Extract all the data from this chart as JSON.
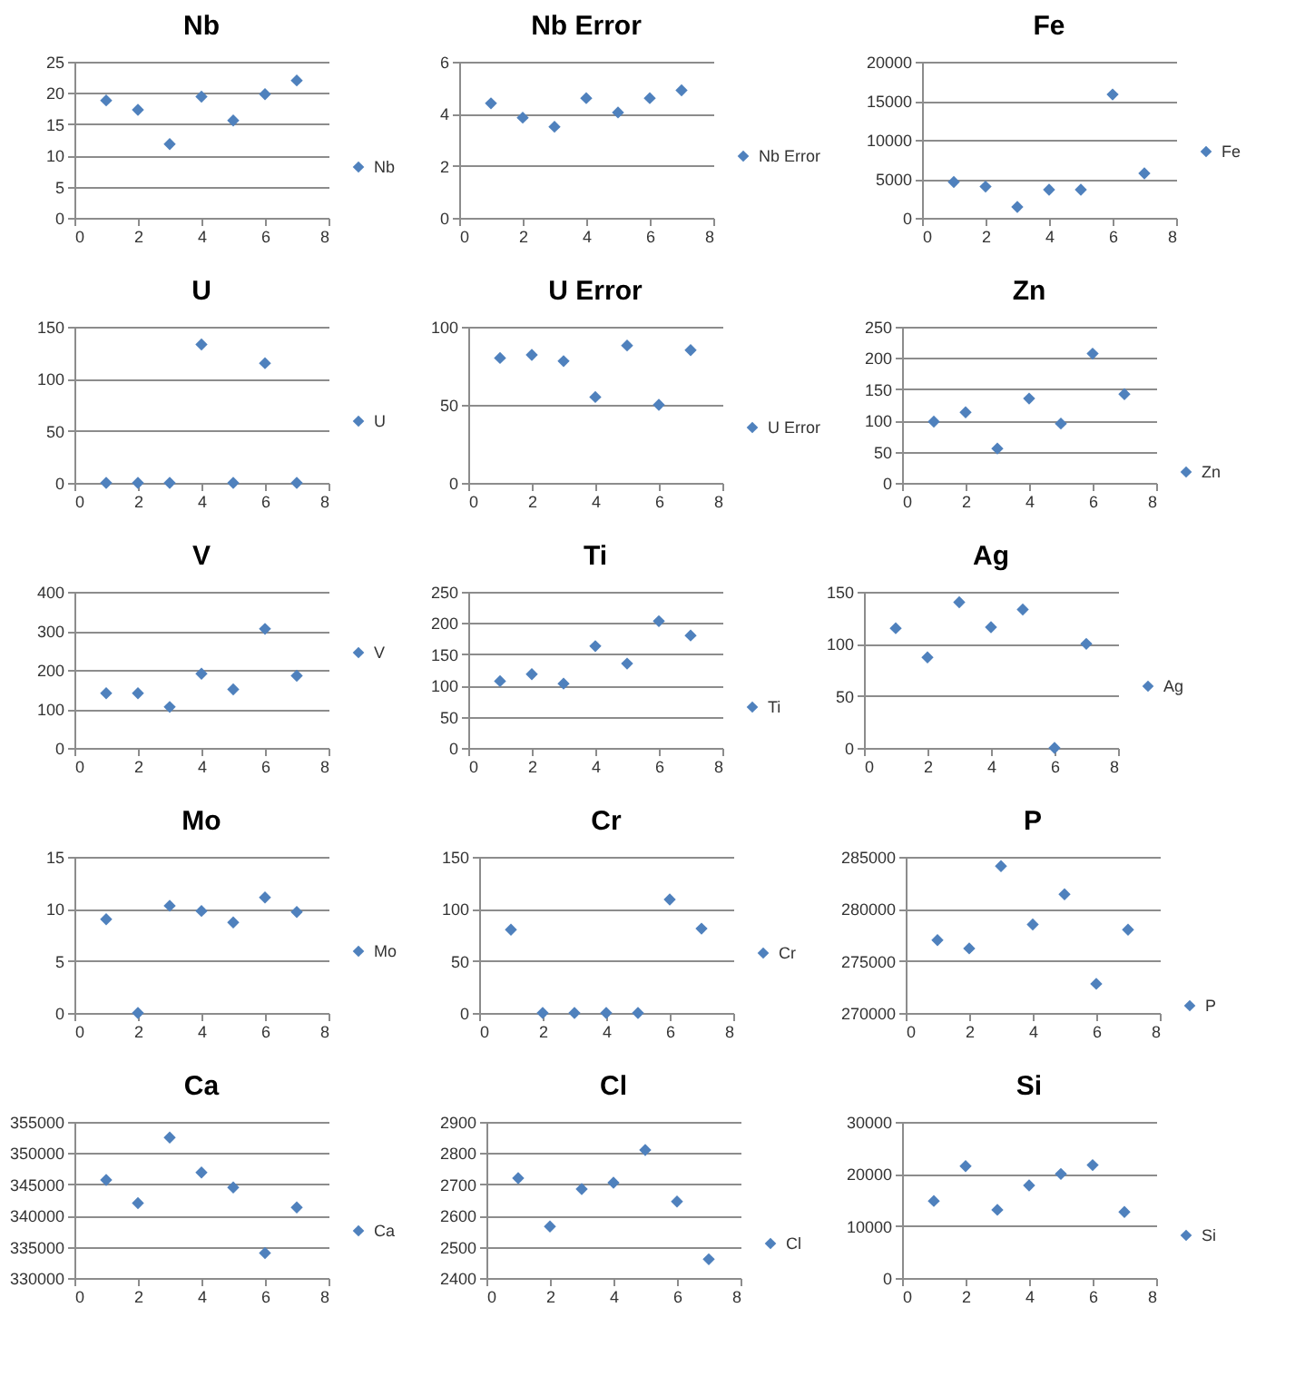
{
  "chart_data": [
    {
      "type": "scatter",
      "title": "Nb",
      "x": [
        1,
        2,
        3,
        4,
        5,
        6,
        7
      ],
      "series": [
        {
          "name": "Nb",
          "color": "#4f81bd",
          "values": [
            18.8,
            17.3,
            11.8,
            19.4,
            15.6,
            19.8,
            22.0
          ]
        }
      ],
      "xlim": [
        0,
        8
      ],
      "xticks": [
        0,
        2,
        4,
        6,
        8
      ],
      "ylim": [
        0,
        25
      ],
      "yticks": [
        0,
        5,
        10,
        15,
        20,
        25
      ],
      "grid": "y",
      "legend": "right",
      "marker": "diamond"
    },
    {
      "type": "scatter",
      "title": "Nb Error",
      "x": [
        1,
        2,
        3,
        4,
        5,
        6,
        7
      ],
      "series": [
        {
          "name": "Nb Error",
          "color": "#4f81bd",
          "values": [
            4.4,
            3.85,
            3.5,
            4.6,
            4.05,
            4.6,
            4.9
          ]
        }
      ],
      "xlim": [
        0,
        8
      ],
      "xticks": [
        0,
        2,
        4,
        6,
        8
      ],
      "ylim": [
        0,
        6
      ],
      "yticks": [
        0,
        2,
        4,
        6
      ],
      "grid": "y",
      "legend": "right",
      "marker": "diamond"
    },
    {
      "type": "scatter",
      "title": "Fe",
      "x": [
        1,
        2,
        3,
        4,
        5,
        6,
        7
      ],
      "series": [
        {
          "name": "Fe",
          "color": "#4f81bd",
          "values": [
            4600,
            4000,
            1400,
            3600,
            3600,
            15800,
            5700
          ]
        }
      ],
      "xlim": [
        0,
        8
      ],
      "xticks": [
        0,
        2,
        4,
        6,
        8
      ],
      "ylim": [
        0,
        20000
      ],
      "yticks": [
        0,
        5000,
        10000,
        15000,
        20000
      ],
      "grid": "y",
      "legend": "right",
      "marker": "diamond"
    },
    {
      "type": "scatter",
      "title": "U",
      "x": [
        1,
        2,
        3,
        4,
        5,
        6,
        7
      ],
      "series": [
        {
          "name": "U",
          "color": "#4f81bd",
          "values": [
            0,
            0,
            0,
            133,
            0,
            115,
            0
          ]
        }
      ],
      "xlim": [
        0,
        8
      ],
      "xticks": [
        0,
        2,
        4,
        6,
        8
      ],
      "ylim": [
        0,
        150
      ],
      "yticks": [
        0,
        50,
        100,
        150
      ],
      "grid": "y",
      "legend": "right",
      "marker": "diamond"
    },
    {
      "type": "scatter",
      "title": "U Error",
      "x": [
        1,
        2,
        3,
        4,
        5,
        6,
        7
      ],
      "series": [
        {
          "name": "U Error",
          "color": "#4f81bd",
          "values": [
            80,
            82,
            78,
            55,
            88,
            50,
            85
          ]
        }
      ],
      "xlim": [
        0,
        8
      ],
      "xticks": [
        0,
        2,
        4,
        6,
        8
      ],
      "ylim": [
        0,
        100
      ],
      "yticks": [
        0,
        50,
        100
      ],
      "grid": "y",
      "legend": "right",
      "marker": "diamond"
    },
    {
      "type": "scatter",
      "title": "Zn",
      "x": [
        1,
        2,
        3,
        4,
        5,
        6,
        7
      ],
      "series": [
        {
          "name": "Zn",
          "color": "#4f81bd",
          "values": [
            98,
            113,
            55,
            135,
            95,
            207,
            142
          ]
        }
      ],
      "xlim": [
        0,
        8
      ],
      "xticks": [
        0,
        2,
        4,
        6,
        8
      ],
      "ylim": [
        0,
        250
      ],
      "yticks": [
        0,
        50,
        100,
        150,
        200,
        250
      ],
      "grid": "y",
      "legend": "right",
      "marker": "diamond"
    },
    {
      "type": "scatter",
      "title": "V",
      "x": [
        1,
        2,
        3,
        4,
        5,
        6,
        7
      ],
      "series": [
        {
          "name": "V",
          "color": "#4f81bd",
          "values": [
            140,
            140,
            105,
            190,
            150,
            305,
            185
          ]
        }
      ],
      "xlim": [
        0,
        8
      ],
      "xticks": [
        0,
        2,
        4,
        6,
        8
      ],
      "ylim": [
        0,
        400
      ],
      "yticks": [
        0,
        100,
        200,
        300,
        400
      ],
      "grid": "y",
      "legend": "right",
      "marker": "diamond"
    },
    {
      "type": "scatter",
      "title": "Ti",
      "x": [
        1,
        2,
        3,
        4,
        5,
        6,
        7
      ],
      "series": [
        {
          "name": "Ti",
          "color": "#4f81bd",
          "values": [
            107,
            118,
            103,
            163,
            135,
            203,
            180
          ]
        }
      ],
      "xlim": [
        0,
        8
      ],
      "xticks": [
        0,
        2,
        4,
        6,
        8
      ],
      "ylim": [
        0,
        250
      ],
      "yticks": [
        0,
        50,
        100,
        150,
        200,
        250
      ],
      "grid": "y",
      "legend": "right",
      "marker": "diamond"
    },
    {
      "type": "scatter",
      "title": "Ag",
      "x": [
        1,
        2,
        3,
        4,
        5,
        6,
        7
      ],
      "series": [
        {
          "name": "Ag",
          "color": "#4f81bd",
          "values": [
            115,
            87,
            140,
            116,
            133,
            0,
            100
          ]
        }
      ],
      "xlim": [
        0,
        8
      ],
      "xticks": [
        0,
        2,
        4,
        6,
        8
      ],
      "ylim": [
        0,
        150
      ],
      "yticks": [
        0,
        50,
        100,
        150
      ],
      "grid": "y",
      "legend": "right",
      "marker": "diamond"
    },
    {
      "type": "scatter",
      "title": "Mo",
      "x": [
        1,
        2,
        3,
        4,
        5,
        6,
        7
      ],
      "series": [
        {
          "name": "Mo",
          "color": "#4f81bd",
          "values": [
            9.0,
            0,
            10.3,
            9.8,
            8.7,
            11.1,
            9.7
          ]
        }
      ],
      "xlim": [
        0,
        8
      ],
      "xticks": [
        0,
        2,
        4,
        6,
        8
      ],
      "ylim": [
        0,
        15
      ],
      "yticks": [
        0,
        5,
        10,
        15
      ],
      "grid": "y",
      "legend": "right",
      "marker": "diamond"
    },
    {
      "type": "scatter",
      "title": "Cr",
      "x": [
        1,
        2,
        3,
        4,
        5,
        6,
        7
      ],
      "series": [
        {
          "name": "Cr",
          "color": "#4f81bd",
          "values": [
            80,
            0,
            0,
            0,
            0,
            109,
            81
          ]
        }
      ],
      "xlim": [
        0,
        8
      ],
      "xticks": [
        0,
        2,
        4,
        6,
        8
      ],
      "ylim": [
        0,
        150
      ],
      "yticks": [
        0,
        50,
        100,
        150
      ],
      "grid": "y",
      "legend": "right",
      "marker": "diamond"
    },
    {
      "type": "scatter",
      "title": "P",
      "x": [
        1,
        2,
        3,
        4,
        5,
        6,
        7
      ],
      "series": [
        {
          "name": "P",
          "color": "#4f81bd",
          "values": [
            277000,
            276200,
            284100,
            278500,
            281400,
            272800,
            278000
          ]
        }
      ],
      "xlim": [
        0,
        8
      ],
      "xticks": [
        0,
        2,
        4,
        6,
        8
      ],
      "ylim": [
        270000,
        285000
      ],
      "yticks": [
        270000,
        275000,
        280000,
        285000
      ],
      "grid": "y",
      "legend": "right",
      "marker": "diamond"
    },
    {
      "type": "scatter",
      "title": "Ca",
      "x": [
        1,
        2,
        3,
        4,
        5,
        6,
        7
      ],
      "series": [
        {
          "name": "Ca",
          "color": "#4f81bd",
          "values": [
            345700,
            342000,
            352500,
            346900,
            344500,
            334000,
            341300
          ]
        }
      ],
      "xlim": [
        0,
        8
      ],
      "xticks": [
        0,
        2,
        4,
        6,
        8
      ],
      "ylim": [
        330000,
        355000
      ],
      "yticks": [
        330000,
        335000,
        340000,
        345000,
        350000,
        355000
      ],
      "grid": "y",
      "legend": "right",
      "marker": "diamond"
    },
    {
      "type": "scatter",
      "title": "Cl",
      "x": [
        1,
        2,
        3,
        4,
        5,
        6,
        7
      ],
      "series": [
        {
          "name": "Cl",
          "color": "#4f81bd",
          "values": [
            2720,
            2565,
            2685,
            2705,
            2810,
            2645,
            2460
          ]
        }
      ],
      "xlim": [
        0,
        8
      ],
      "xticks": [
        0,
        2,
        4,
        6,
        8
      ],
      "ylim": [
        2400,
        2900
      ],
      "yticks": [
        2400,
        2500,
        2600,
        2700,
        2800,
        2900
      ],
      "grid": "y",
      "legend": "right",
      "marker": "diamond"
    },
    {
      "type": "scatter",
      "title": "Si",
      "x": [
        1,
        2,
        3,
        4,
        5,
        6,
        7
      ],
      "series": [
        {
          "name": "Si",
          "color": "#4f81bd",
          "values": [
            14800,
            21500,
            13100,
            17800,
            20000,
            21700,
            12700
          ]
        }
      ],
      "xlim": [
        0,
        8
      ],
      "xticks": [
        0,
        2,
        4,
        6,
        8
      ],
      "ylim": [
        0,
        30000
      ],
      "yticks": [
        0,
        10000,
        20000,
        30000
      ],
      "grid": "y",
      "legend": "right",
      "marker": "diamond"
    }
  ]
}
